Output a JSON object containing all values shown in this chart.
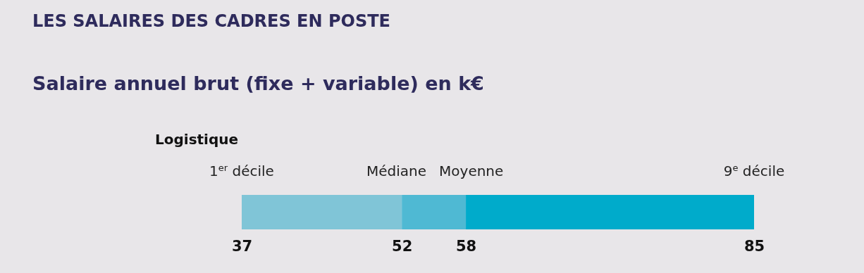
{
  "chart_data": {
    "type": "bar",
    "orientation": "horizontal",
    "title": "LES SALAIRES DES CADRES EN POSTE",
    "subtitle": "Salaire annuel brut (fixe + variable) en k€",
    "categories": [
      "Logistique"
    ],
    "xlim": [
      37,
      85
    ],
    "xticks": [
      37,
      52,
      58,
      85
    ],
    "series": [
      {
        "color": "#80c5d7",
        "values": [
          15
        ],
        "base": [
          37
        ]
      },
      {
        "color": "#4fb9d3",
        "values": [
          6
        ],
        "base": [
          52
        ]
      },
      {
        "color": "#00abcb",
        "values": [
          27
        ],
        "base": [
          58
        ]
      }
    ],
    "annotations": [
      "1$^{er}$ décile",
      "Médiane",
      "Moyenne",
      "9$^{e}$ décile"
    ]
  }
}
